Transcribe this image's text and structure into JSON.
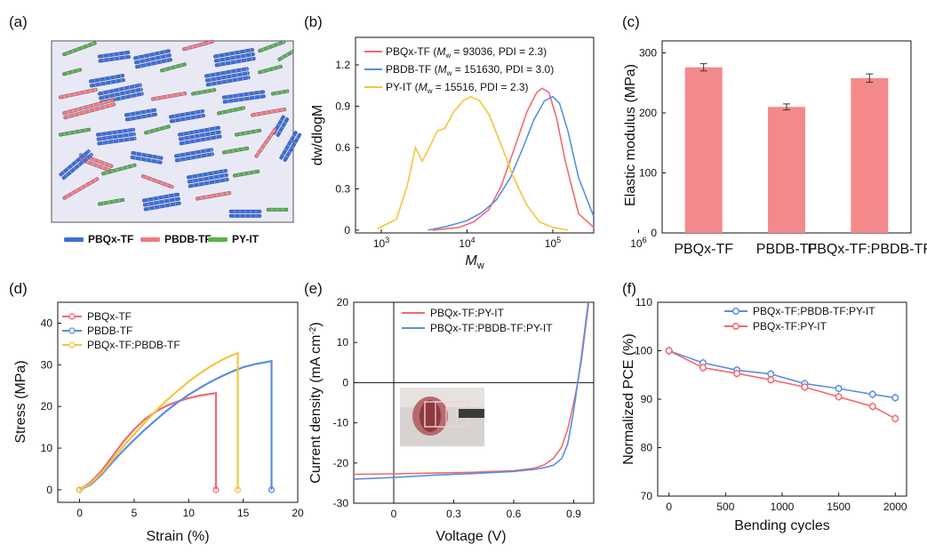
{
  "colors": {
    "red": "#f06a6f",
    "blue": "#5a8fe0",
    "yellow": "#f5c53c",
    "green": "#5bb04c",
    "bar": "#f4898c",
    "axis": "#111111"
  },
  "panels": {
    "a": "(a)",
    "b": "(b)",
    "c": "(c)",
    "d": "(d)",
    "e": "(e)",
    "f": "(f)"
  },
  "schematic": {
    "legend": [
      {
        "label": "PBQx-TF",
        "color": "#3d6fd8"
      },
      {
        "label": "PBDB-TF",
        "color": "#f07b80"
      },
      {
        "label": "PY-IT",
        "color": "#5bb04c"
      }
    ]
  },
  "chart_data": [
    {
      "id": "b",
      "type": "line",
      "xlabel_main": "M",
      "xlabel_sub": "w",
      "ylabel": "dw/dlogM",
      "x_scale": "log",
      "xlim": [
        500,
        300000
      ],
      "ylim": [
        -0.02,
        1.4
      ],
      "xticks": [
        {
          "v": 1000,
          "label": "10",
          "exp": "3"
        },
        {
          "v": 10000,
          "label": "10",
          "exp": "4"
        },
        {
          "v": 100000,
          "label": "10",
          "exp": "5"
        },
        {
          "v": 1000000,
          "label": "10",
          "exp": "6"
        }
      ],
      "yticks": [
        {
          "v": 0,
          "label": "0"
        },
        {
          "v": 0.3,
          "label": "0.3"
        },
        {
          "v": 0.6,
          "label": "0.6"
        },
        {
          "v": 0.9,
          "label": "0.9"
        },
        {
          "v": 1.2,
          "label": "1.2"
        }
      ],
      "series": [
        {
          "name": "PBQx-TF",
          "legend_pre": "PBQx-TF (",
          "legend_m": "M",
          "legend_sub": "w",
          "legend_post": " = 93036, PDI = 2.3)",
          "color": "#f06a6f",
          "x": [
            4000,
            8000,
            12000,
            18000,
            25000,
            35000,
            50000,
            65000,
            75000,
            90000,
            110000,
            140000,
            200000,
            300000
          ],
          "y": [
            0,
            0.02,
            0.06,
            0.15,
            0.32,
            0.58,
            0.86,
            1.0,
            1.03,
            1.0,
            0.82,
            0.5,
            0.12,
            0.02
          ]
        },
        {
          "name": "PBDB-TF",
          "legend_pre": "PBDB-TF (",
          "legend_m": "M",
          "legend_sub": "w",
          "legend_post": " = 151630, PDI = 3.0)",
          "color": "#5a8fe0",
          "x": [
            3500,
            6000,
            10000,
            15000,
            22000,
            32000,
            45000,
            60000,
            80000,
            100000,
            120000,
            150000,
            200000,
            300000
          ],
          "y": [
            0,
            0.03,
            0.07,
            0.13,
            0.22,
            0.38,
            0.6,
            0.8,
            0.94,
            0.97,
            0.92,
            0.72,
            0.38,
            0.1
          ]
        },
        {
          "name": "PY-IT",
          "legend_pre": "PY-IT (",
          "legend_m": "M",
          "legend_sub": "w",
          "legend_post": " = 15516, PDI = 2.3)",
          "color": "#f5c53c",
          "x": [
            900,
            1500,
            2000,
            2500,
            3000,
            3500,
            4500,
            5500,
            7000,
            9000,
            11000,
            14000,
            18000,
            25000,
            35000,
            50000,
            70000,
            100000,
            150000
          ],
          "y": [
            0.01,
            0.08,
            0.32,
            0.6,
            0.5,
            0.58,
            0.72,
            0.74,
            0.86,
            0.94,
            0.97,
            0.94,
            0.84,
            0.62,
            0.38,
            0.18,
            0.06,
            0.02,
            0
          ]
        }
      ]
    },
    {
      "id": "c",
      "type": "bar",
      "ylabel": "Elastic modulus (MPa)",
      "ylim": [
        0,
        320
      ],
      "yticks": [
        {
          "v": 0,
          "label": "0"
        },
        {
          "v": 100,
          "label": "100"
        },
        {
          "v": 200,
          "label": "200"
        },
        {
          "v": 300,
          "label": "300"
        }
      ],
      "categories": [
        "PBQx-TF",
        "PBDB-TF",
        "PBQx-TF:PBDB-TF"
      ],
      "values": [
        276,
        210,
        258
      ],
      "errors": [
        6,
        5,
        7
      ]
    },
    {
      "id": "d",
      "type": "line",
      "xlabel": "Strain (%)",
      "ylabel": "Stress (MPa)",
      "xlim": [
        -2,
        20
      ],
      "ylim": [
        -3,
        45
      ],
      "xticks": [
        {
          "v": 0,
          "label": "0"
        },
        {
          "v": 5,
          "label": "5"
        },
        {
          "v": 10,
          "label": "10"
        },
        {
          "v": 15,
          "label": "15"
        },
        {
          "v": 20,
          "label": "20"
        }
      ],
      "yticks": [
        {
          "v": 0,
          "label": "0"
        },
        {
          "v": 10,
          "label": "10"
        },
        {
          "v": 20,
          "label": "20"
        },
        {
          "v": 30,
          "label": "30"
        },
        {
          "v": 40,
          "label": "40"
        }
      ],
      "series": [
        {
          "name": "PBQx-TF",
          "color": "#f06a6f",
          "x": [
            0,
            1,
            2,
            3,
            4,
            5,
            6,
            7,
            8,
            9,
            10,
            11,
            12,
            12.5,
            12.5
          ],
          "y": [
            0,
            1.8,
            4.5,
            8,
            11.5,
            14.5,
            17,
            18.8,
            20.2,
            21.2,
            22,
            22.6,
            23,
            23.2,
            0
          ]
        },
        {
          "name": "PBDB-TF",
          "color": "#5a8fe0",
          "x": [
            0,
            1,
            2,
            3,
            4,
            5,
            6,
            7,
            8,
            9,
            10,
            11,
            12,
            13,
            14,
            15,
            16,
            17,
            17.6,
            17.6
          ],
          "y": [
            0,
            1.2,
            3.6,
            6.6,
            9.4,
            12,
            14.5,
            16.8,
            19,
            21,
            22.8,
            24.4,
            25.9,
            27.2,
            28.4,
            29.4,
            30.1,
            30.6,
            30.9,
            0
          ]
        },
        {
          "name": "PBQx-TF:PBDB-TF",
          "color": "#f5c53c",
          "x": [
            0,
            1,
            2,
            3,
            4,
            5,
            6,
            7,
            8,
            9,
            10,
            11,
            12,
            13,
            14,
            14.5,
            14.5
          ],
          "y": [
            0,
            1.5,
            4,
            7.2,
            10.4,
            13.3,
            16.2,
            19,
            21.5,
            23.8,
            26,
            27.9,
            29.6,
            31.1,
            32.3,
            32.8,
            0
          ]
        }
      ]
    },
    {
      "id": "e",
      "type": "line",
      "xlabel": "Voltage (V)",
      "ylabel_pre": "Current density (mA cm",
      "ylabel_exp": "-2",
      "ylabel_post": ")",
      "xlim": [
        -0.2,
        1.0
      ],
      "ylim": [
        -30,
        20
      ],
      "xticks": [
        {
          "v": 0,
          "label": "0"
        },
        {
          "v": 0.3,
          "label": "0.3"
        },
        {
          "v": 0.6,
          "label": "0.6"
        },
        {
          "v": 0.9,
          "label": "0.9"
        }
      ],
      "yticks": [
        {
          "v": -30,
          "label": "-30"
        },
        {
          "v": -20,
          "label": "-20"
        },
        {
          "v": -10,
          "label": "-10"
        },
        {
          "v": 0,
          "label": "0"
        },
        {
          "v": 10,
          "label": "10"
        },
        {
          "v": 20,
          "label": "20"
        }
      ],
      "series": [
        {
          "name": "PBQx-TF:PY-IT",
          "color": "#f06a6f",
          "x": [
            -0.2,
            0,
            0.2,
            0.4,
            0.6,
            0.7,
            0.75,
            0.8,
            0.84,
            0.87,
            0.9,
            0.92,
            0.94,
            0.96,
            0.98
          ],
          "y": [
            -22.8,
            -22.7,
            -22.5,
            -22.3,
            -21.9,
            -21.3,
            -20.5,
            -18.8,
            -16,
            -11.5,
            -5,
            0,
            6,
            14,
            22
          ]
        },
        {
          "name": "PBQx-TF:PBDB-TF:PY-IT",
          "color": "#5a8fe0",
          "x": [
            -0.2,
            0,
            0.2,
            0.4,
            0.6,
            0.7,
            0.75,
            0.8,
            0.84,
            0.87,
            0.9,
            0.92,
            0.94,
            0.96,
            0.98
          ],
          "y": [
            -24,
            -23.6,
            -23,
            -22.6,
            -22.1,
            -21.6,
            -21.2,
            -20.5,
            -18.9,
            -15.2,
            -7,
            0,
            7,
            15,
            23
          ]
        }
      ]
    },
    {
      "id": "f",
      "type": "line",
      "xlabel": "Bending cycles",
      "ylabel": "Normalized PCE (%)",
      "xlim": [
        -100,
        2100
      ],
      "ylim": [
        70,
        110
      ],
      "xticks": [
        {
          "v": 0,
          "label": "0"
        },
        {
          "v": 500,
          "label": "500"
        },
        {
          "v": 1000,
          "label": "1000"
        },
        {
          "v": 1500,
          "label": "1500"
        },
        {
          "v": 2000,
          "label": "2000"
        }
      ],
      "yticks": [
        {
          "v": 70,
          "label": "70"
        },
        {
          "v": 80,
          "label": "80"
        },
        {
          "v": 90,
          "label": "90"
        },
        {
          "v": 100,
          "label": "100"
        },
        {
          "v": 110,
          "label": "110"
        }
      ],
      "series": [
        {
          "name": "PBQx-TF:PBDB-TF:PY-IT",
          "color": "#5a8fe0",
          "x": [
            0,
            300,
            600,
            900,
            1200,
            1500,
            1800,
            2000
          ],
          "y": [
            100,
            97.5,
            96,
            95.2,
            93.2,
            92.2,
            91,
            90.3
          ]
        },
        {
          "name": "PBQx-TF:PY-IT",
          "color": "#f06a6f",
          "x": [
            0,
            300,
            600,
            900,
            1200,
            1500,
            1800,
            2000
          ],
          "y": [
            100,
            96.5,
            95.3,
            94,
            92.5,
            90.5,
            88.5,
            86
          ]
        }
      ]
    }
  ]
}
